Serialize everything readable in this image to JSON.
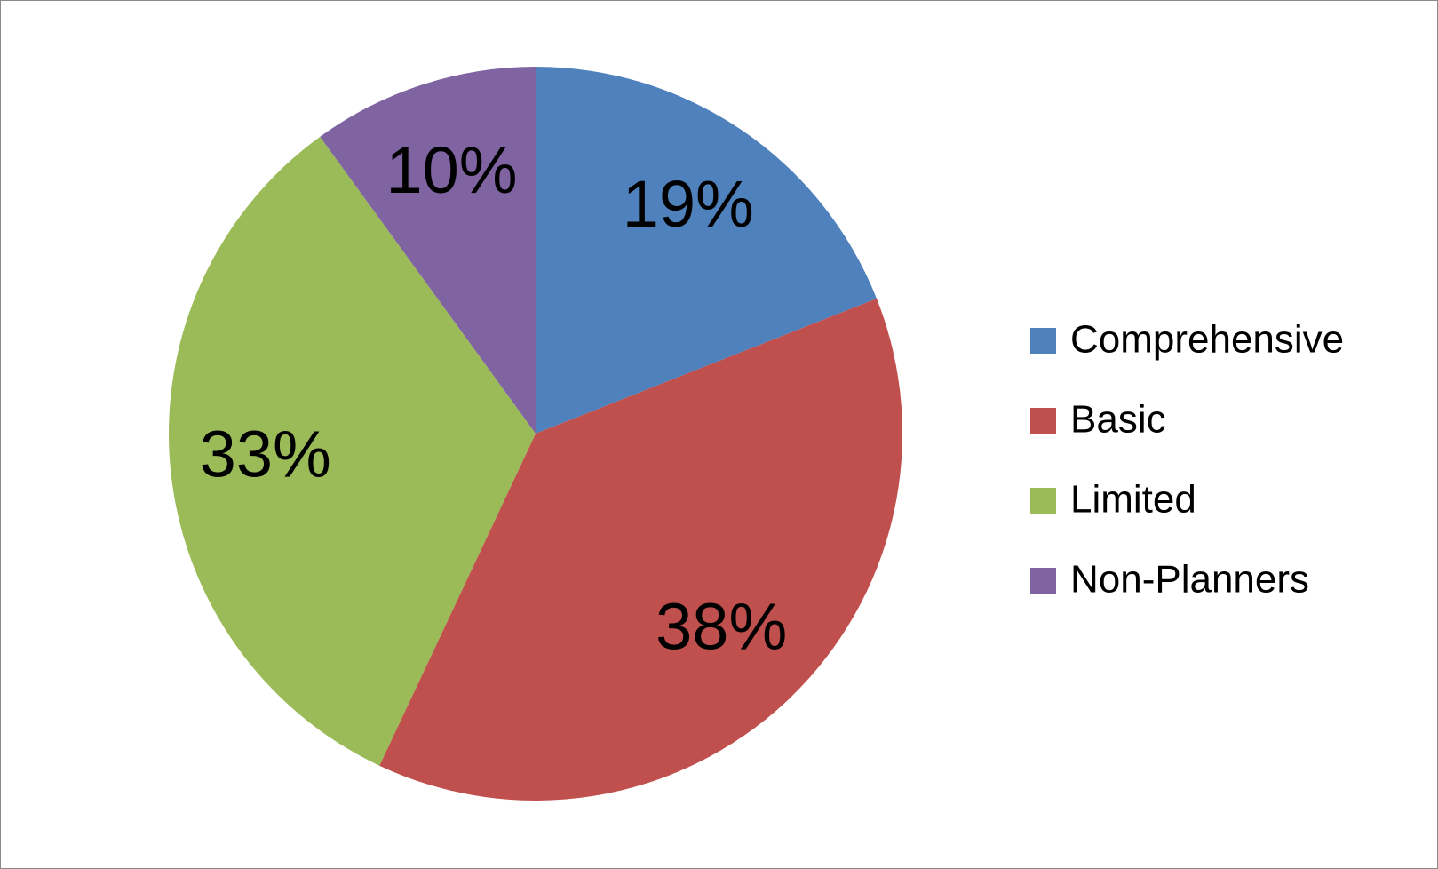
{
  "chart_data": {
    "type": "pie",
    "categories": [
      "Comprehensive",
      "Basic",
      "Limited",
      "Non-Planners"
    ],
    "values": [
      19,
      38,
      33,
      10
    ],
    "value_labels": [
      "19%",
      "38%",
      "33%",
      "10%"
    ],
    "colors": [
      "#4f81bd",
      "#c0504d",
      "#9bbb59",
      "#8064a2"
    ],
    "legend": "right"
  }
}
